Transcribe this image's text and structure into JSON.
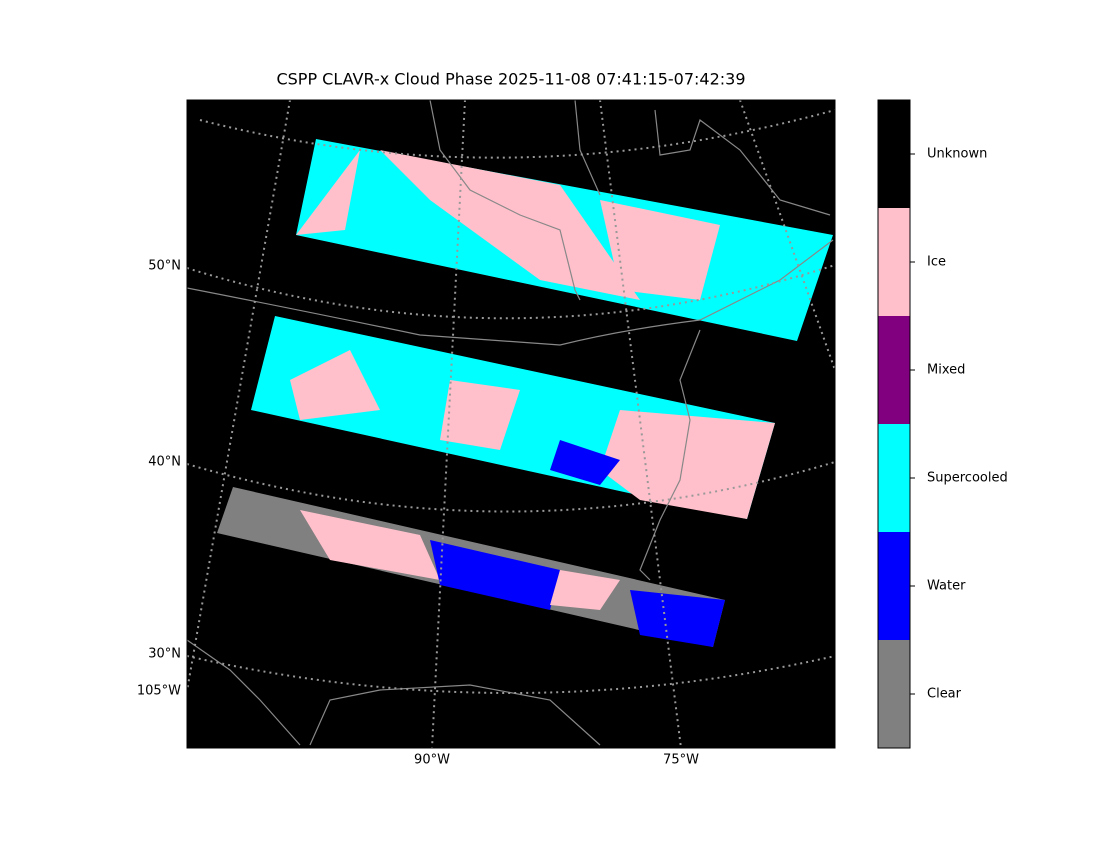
{
  "title": "CSPP CLAVR-x Cloud Phase 2025-11-08 07:41:15-07:42:39",
  "map": {
    "lat_labels": [
      "50°N",
      "40°N",
      "30°N"
    ],
    "lon_labels": [
      "105°W",
      "90°W",
      "75°W"
    ]
  },
  "colorbar": {
    "categories": [
      {
        "label": "Unknown",
        "color": "#000000"
      },
      {
        "label": "Ice",
        "color": "#ffc0cb"
      },
      {
        "label": "Mixed",
        "color": "#800080"
      },
      {
        "label": "Supercooled",
        "color": "#00ffff"
      },
      {
        "label": "Water",
        "color": "#0000ff"
      },
      {
        "label": "Clear",
        "color": "#808080"
      }
    ]
  }
}
